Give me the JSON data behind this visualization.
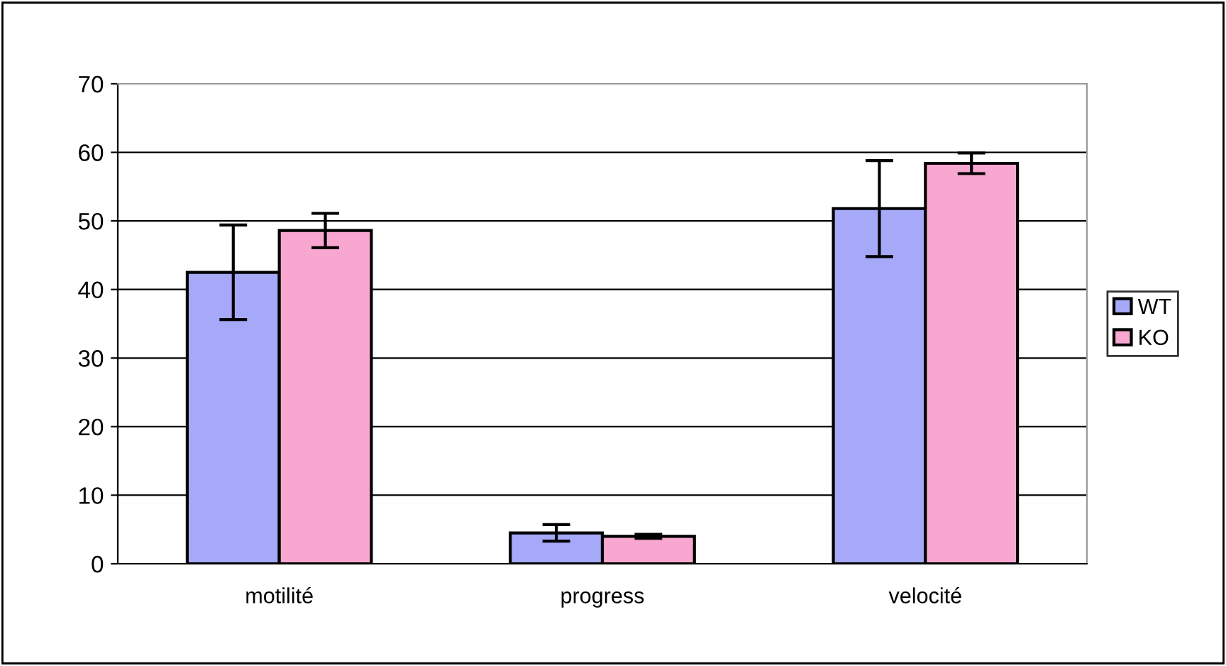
{
  "chart_data": {
    "type": "bar",
    "categories": [
      "motilité",
      "progress",
      "velocité"
    ],
    "series": [
      {
        "name": "WT",
        "color": "#a6a8f8",
        "values": [
          42.5,
          4.5,
          51.8
        ],
        "errors": [
          6.9,
          1.2,
          7
        ]
      },
      {
        "name": "KO",
        "color": "#f8a8d0",
        "values": [
          48.6,
          4.0,
          58.4
        ],
        "errors": [
          2.5,
          0.3,
          1.5
        ]
      }
    ],
    "ylim": [
      0,
      70
    ],
    "yticks": [
      0,
      10,
      20,
      30,
      40,
      50,
      60,
      70
    ],
    "grid": "y",
    "legend": "right"
  }
}
